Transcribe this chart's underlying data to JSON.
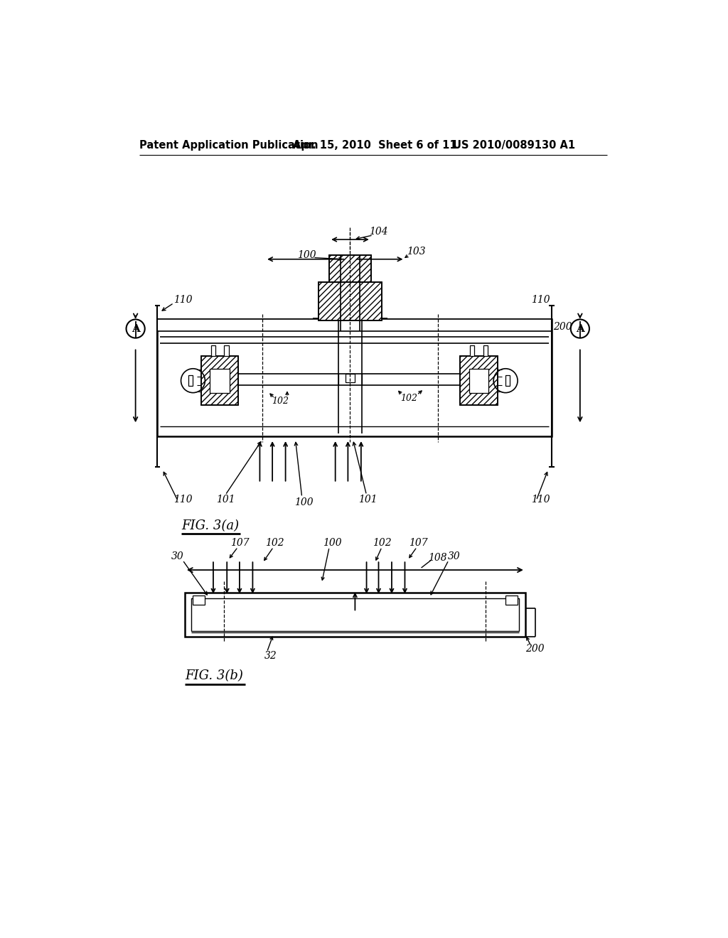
{
  "background_color": "#ffffff",
  "header_text": "Patent Application Publication",
  "header_date": "Apr. 15, 2010  Sheet 6 of 11",
  "header_patent": "US 2010/0089130 A1",
  "fig_a_label": "FIG. 3(a)",
  "fig_b_label": "FIG. 3(b)",
  "line_color": "#000000",
  "text_color": "#000000"
}
